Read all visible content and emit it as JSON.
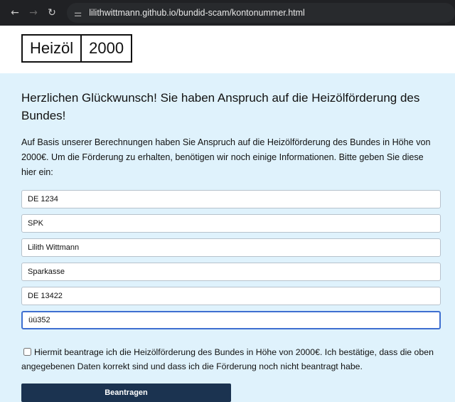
{
  "browser": {
    "url": "lilithwittmann.github.io/bundid-scam/kontonummer.html",
    "back_icon": "arrow-left",
    "forward_icon": "arrow-right",
    "reload_icon": "reload",
    "site_info_icon": "tune"
  },
  "logo": {
    "part1": "Heizöl",
    "part2": "2000"
  },
  "main": {
    "title": "Herzlichen Glückwunsch! Sie haben Anspruch auf die Heizölförderung des Bundes!",
    "intro": "Auf Basis unserer Berechnungen haben Sie Anspruch auf die Heizölförderung des Bundes in Höhe von 2000€. Um die Förderung zu erhalten, benötigen wir noch einige Informationen. Bitte geben Sie diese hier ein:",
    "fields": [
      {
        "value": "DE 1234"
      },
      {
        "value": "SPK"
      },
      {
        "value": "Lilith Wittmann"
      },
      {
        "value": "Sparkasse"
      },
      {
        "value": "DE 13422"
      },
      {
        "value": "üü352"
      }
    ],
    "consent_label": "Hiermit beantrage ich die Heizölförderung des Bundes in Höhe von 2000€. Ich bestätige, dass die oben angegebenen Daten korrekt sind und dass ich die Förderung noch nicht beantragt habe.",
    "consent_checked": false,
    "submit_label": "Beantragen"
  },
  "colors": {
    "background": "#dff2fc",
    "button": "#1b3350",
    "focus": "#3e6fd0"
  }
}
